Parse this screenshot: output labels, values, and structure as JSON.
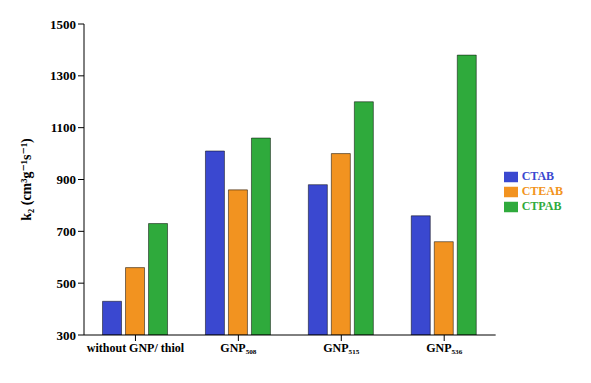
{
  "chart_data": {
    "type": "bar",
    "categories": [
      "without GNP/ thiol",
      "GNP₅₀₈",
      "GNP₅₁₅",
      "GNP₅₃₆"
    ],
    "series": [
      {
        "name": "CTAB",
        "color": "#3a48d0",
        "values": [
          430,
          1010,
          880,
          760
        ]
      },
      {
        "name": "CTEAB",
        "color": "#f29320",
        "values": [
          560,
          860,
          1000,
          660
        ]
      },
      {
        "name": "CTPAB",
        "color": "#2faa3c",
        "values": [
          730,
          1060,
          1200,
          1380
        ]
      }
    ],
    "y_label": "k₂ (cm³g⁻¹s⁻¹)",
    "ylim": [
      300,
      1500
    ],
    "yticks": [
      300,
      500,
      700,
      900,
      1100,
      1300,
      1500
    ],
    "grid": false,
    "legend": "right"
  }
}
